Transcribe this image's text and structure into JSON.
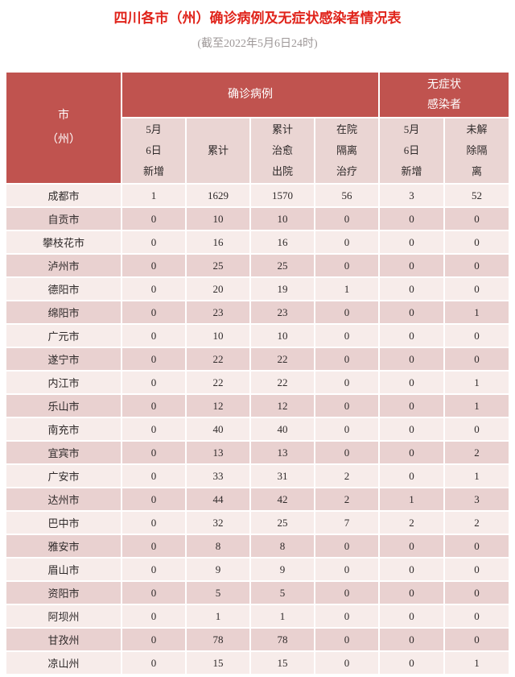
{
  "page": {
    "title": "四川各市（州）确诊病例及无症状感染者情况表",
    "subtitle": "(截至2022年5月6日24时)"
  },
  "colors": {
    "title_red": "#e0241b",
    "subtitle_gray": "#9e9898",
    "header_red": "#c0534f",
    "subheader_bg": "#ead5d3",
    "row_light": "#f7ecea",
    "row_dark": "#e9d1d0",
    "text_dark": "#2f2a2a"
  },
  "table": {
    "corner_label": "市\n（州）",
    "groups": [
      {
        "label": "确诊病例",
        "span": 4
      },
      {
        "label": "无症状\n感染者",
        "span": 2
      }
    ],
    "subheaders": [
      {
        "label": "5月\n6日\n新增"
      },
      {
        "label": "累计"
      },
      {
        "label": "累计\n治愈\n出院"
      },
      {
        "label": "在院\n隔离\n治疗"
      },
      {
        "label": "5月\n6日\n新增"
      },
      {
        "label": "未解\n除隔\n离"
      }
    ],
    "rows": [
      {
        "city": "成都市",
        "values": [
          "1",
          "1629",
          "1570",
          "56",
          "3",
          "52"
        ]
      },
      {
        "city": "自贡市",
        "values": [
          "0",
          "10",
          "10",
          "0",
          "0",
          "0"
        ]
      },
      {
        "city": "攀枝花市",
        "values": [
          "0",
          "16",
          "16",
          "0",
          "0",
          "0"
        ]
      },
      {
        "city": "泸州市",
        "values": [
          "0",
          "25",
          "25",
          "0",
          "0",
          "0"
        ]
      },
      {
        "city": "德阳市",
        "values": [
          "0",
          "20",
          "19",
          "1",
          "0",
          "0"
        ]
      },
      {
        "city": "绵阳市",
        "values": [
          "0",
          "23",
          "23",
          "0",
          "0",
          "1"
        ]
      },
      {
        "city": "广元市",
        "values": [
          "0",
          "10",
          "10",
          "0",
          "0",
          "0"
        ]
      },
      {
        "city": "遂宁市",
        "values": [
          "0",
          "22",
          "22",
          "0",
          "0",
          "0"
        ]
      },
      {
        "city": "内江市",
        "values": [
          "0",
          "22",
          "22",
          "0",
          "0",
          "1"
        ]
      },
      {
        "city": "乐山市",
        "values": [
          "0",
          "12",
          "12",
          "0",
          "0",
          "1"
        ]
      },
      {
        "city": "南充市",
        "values": [
          "0",
          "40",
          "40",
          "0",
          "0",
          "0"
        ]
      },
      {
        "city": "宜宾市",
        "values": [
          "0",
          "13",
          "13",
          "0",
          "0",
          "2"
        ]
      },
      {
        "city": "广安市",
        "values": [
          "0",
          "33",
          "31",
          "2",
          "0",
          "1"
        ]
      },
      {
        "city": "达州市",
        "values": [
          "0",
          "44",
          "42",
          "2",
          "1",
          "3"
        ]
      },
      {
        "city": "巴中市",
        "values": [
          "0",
          "32",
          "25",
          "7",
          "2",
          "2"
        ]
      },
      {
        "city": "雅安市",
        "values": [
          "0",
          "8",
          "8",
          "0",
          "0",
          "0"
        ]
      },
      {
        "city": "眉山市",
        "values": [
          "0",
          "9",
          "9",
          "0",
          "0",
          "0"
        ]
      },
      {
        "city": "资阳市",
        "values": [
          "0",
          "5",
          "5",
          "0",
          "0",
          "0"
        ]
      },
      {
        "city": "阿坝州",
        "values": [
          "0",
          "1",
          "1",
          "0",
          "0",
          "0"
        ]
      },
      {
        "city": "甘孜州",
        "values": [
          "0",
          "78",
          "78",
          "0",
          "0",
          "0"
        ]
      },
      {
        "city": "凉山州",
        "values": [
          "0",
          "15",
          "15",
          "0",
          "0",
          "1"
        ]
      }
    ]
  },
  "chart_data": {
    "type": "table",
    "title": "四川各市（州）确诊病例及无症状感染者情况表",
    "subtitle": "(截至2022年5月6日24时)",
    "column_groups": [
      "确诊病例",
      "无症状感染者"
    ],
    "columns": [
      "市（州）",
      "确诊病例·5月6日新增",
      "确诊病例·累计",
      "确诊病例·累计治愈出院",
      "确诊病例·在院隔离治疗",
      "无症状感染者·5月6日新增",
      "无症状感染者·未解除隔离"
    ],
    "rows": [
      [
        "成都市",
        1,
        1629,
        1570,
        56,
        3,
        52
      ],
      [
        "自贡市",
        0,
        10,
        10,
        0,
        0,
        0
      ],
      [
        "攀枝花市",
        0,
        16,
        16,
        0,
        0,
        0
      ],
      [
        "泸州市",
        0,
        25,
        25,
        0,
        0,
        0
      ],
      [
        "德阳市",
        0,
        20,
        19,
        1,
        0,
        0
      ],
      [
        "绵阳市",
        0,
        23,
        23,
        0,
        0,
        1
      ],
      [
        "广元市",
        0,
        10,
        10,
        0,
        0,
        0
      ],
      [
        "遂宁市",
        0,
        22,
        22,
        0,
        0,
        0
      ],
      [
        "内江市",
        0,
        22,
        22,
        0,
        0,
        1
      ],
      [
        "乐山市",
        0,
        12,
        12,
        0,
        0,
        1
      ],
      [
        "南充市",
        0,
        40,
        40,
        0,
        0,
        0
      ],
      [
        "宜宾市",
        0,
        13,
        13,
        0,
        0,
        2
      ],
      [
        "广安市",
        0,
        33,
        31,
        2,
        0,
        1
      ],
      [
        "达州市",
        0,
        44,
        42,
        2,
        1,
        3
      ],
      [
        "巴中市",
        0,
        32,
        25,
        7,
        2,
        2
      ],
      [
        "雅安市",
        0,
        8,
        8,
        0,
        0,
        0
      ],
      [
        "眉山市",
        0,
        9,
        9,
        0,
        0,
        0
      ],
      [
        "资阳市",
        0,
        5,
        5,
        0,
        0,
        0
      ],
      [
        "阿坝州",
        0,
        1,
        1,
        0,
        0,
        0
      ],
      [
        "甘孜州",
        0,
        78,
        78,
        0,
        0,
        0
      ],
      [
        "凉山州",
        0,
        15,
        15,
        0,
        0,
        1
      ]
    ]
  }
}
